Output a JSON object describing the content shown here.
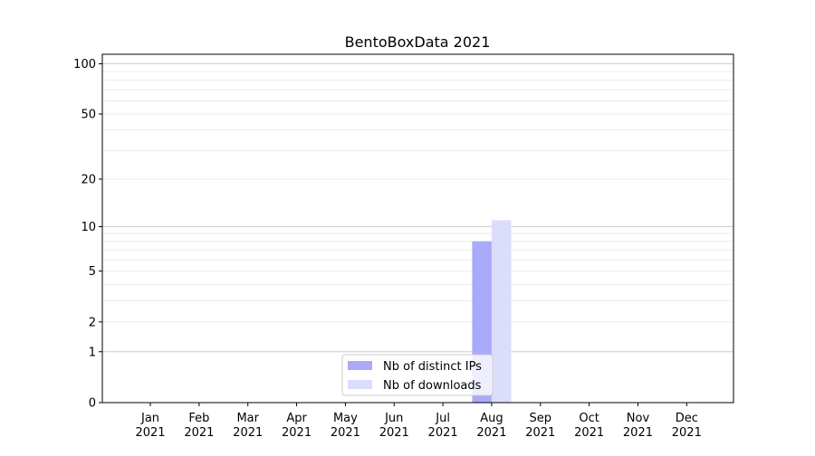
{
  "chart_data": {
    "type": "bar",
    "title": "BentoBoxData 2021",
    "xlabel": "",
    "ylabel": "",
    "y_scale": "log(1+y)",
    "ylim": [
      0,
      114
    ],
    "yticks": [
      0,
      1,
      2,
      5,
      10,
      20,
      50,
      100
    ],
    "categories": [
      "Jan\n2021",
      "Feb\n2021",
      "Mar\n2021",
      "Apr\n2021",
      "May\n2021",
      "Jun\n2021",
      "Jul\n2021",
      "Aug\n2021",
      "Sep\n2021",
      "Oct\n2021",
      "Nov\n2021",
      "Dec\n2021"
    ],
    "grid": "horizontal major and minor",
    "legend_placement": "lower center",
    "series": [
      {
        "name": "Nb of distinct IPs",
        "color": "#aaaafa",
        "values": [
          0,
          0,
          0,
          0,
          0,
          0,
          0,
          8,
          0,
          0,
          0,
          0
        ]
      },
      {
        "name": "Nb of downloads",
        "color": "#dcdcfc",
        "values": [
          0,
          0,
          0,
          0,
          0,
          0,
          0,
          11,
          0,
          0,
          0,
          0
        ]
      }
    ]
  }
}
